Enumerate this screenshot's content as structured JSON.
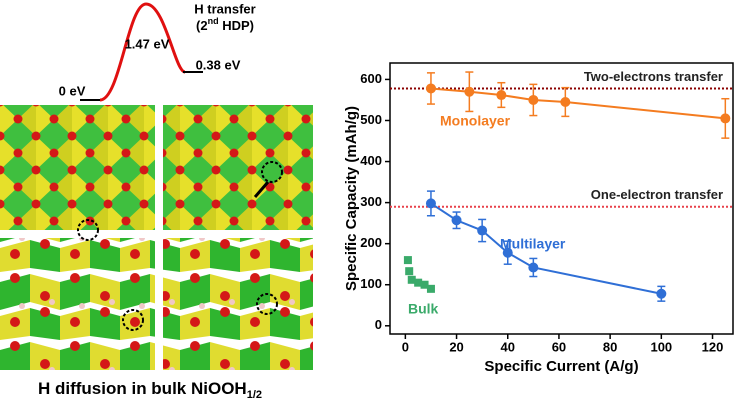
{
  "energy_diagram": {
    "title_line1": "H transfer",
    "title_line2": [
      "(2",
      "nd",
      " HDP)"
    ],
    "barrier": "1.47 eV",
    "start": "0 eV",
    "end": "0.38 eV"
  },
  "caption": [
    "H diffusion in bulk NiOOH",
    "1/2"
  ],
  "chart_data": {
    "type": "scatter",
    "x_label": "Specific Current (A/g)",
    "y_label": "Specific Capacity (mAh/g)",
    "xlim": [
      -6,
      128
    ],
    "ylim": [
      -20,
      640
    ],
    "xticks": [
      0,
      20,
      40,
      60,
      80,
      100,
      120
    ],
    "yticks": [
      0,
      100,
      200,
      300,
      400,
      500,
      600
    ],
    "reference_lines": [
      {
        "name": "Two-electrons transfer",
        "value": 578,
        "color": "#8b0000"
      },
      {
        "name": "One-electron transfer",
        "value": 290,
        "color": "#e8414a"
      }
    ],
    "series": [
      {
        "name": "Monolayer",
        "color": "#f47c20",
        "marker": "circle",
        "connected": true,
        "x": [
          10,
          25,
          37.5,
          50,
          62.5,
          125
        ],
        "values": [
          578,
          570,
          562,
          550,
          545,
          505
        ],
        "errors": [
          38,
          48,
          30,
          38,
          35,
          48
        ]
      },
      {
        "name": "Multilayer",
        "color": "#2f6fd6",
        "marker": "circle",
        "connected": true,
        "x": [
          10,
          20,
          30,
          40,
          50,
          100
        ],
        "values": [
          298,
          257,
          232,
          178,
          142,
          78
        ],
        "errors": [
          30,
          20,
          27,
          28,
          22,
          18
        ]
      },
      {
        "name": "Bulk",
        "color": "#3aaa6a",
        "marker": "square",
        "connected": false,
        "x": [
          1,
          1.5,
          2.5,
          5,
          7.5,
          10
        ],
        "values": [
          160,
          133,
          112,
          105,
          100,
          90
        ]
      }
    ]
  }
}
